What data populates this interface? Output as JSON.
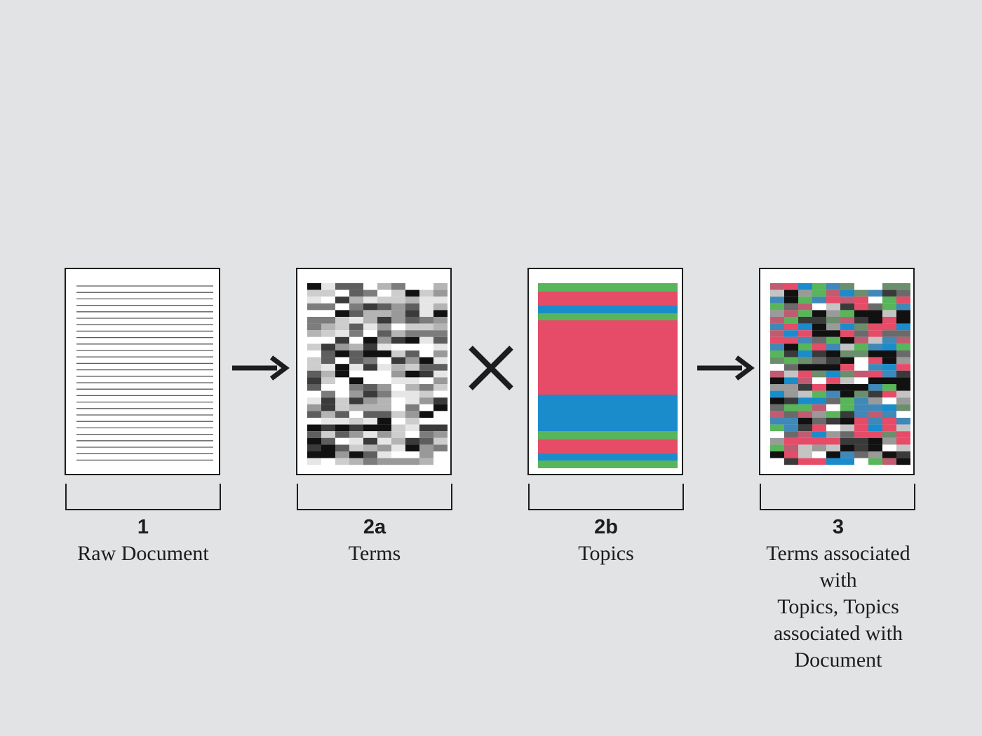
{
  "colors": {
    "background": "#e2e3e5",
    "ink": "#1d1d1d",
    "topic_green": "#58b55a",
    "topic_pink": "#e64b68",
    "topic_blue": "#1a8ccb"
  },
  "icons": {
    "arrow_1": "arrow-right-icon",
    "operator": "multiply-icon",
    "arrow_2": "arrow-right-icon"
  },
  "steps": [
    {
      "num": "1",
      "label": "Raw Document"
    },
    {
      "num": "2a",
      "label": "Terms"
    },
    {
      "num": "2b",
      "label": "Topics"
    },
    {
      "num": "3",
      "label": "Terms associated with\nTopics, Topics associated with Document"
    }
  ],
  "topic_bands": [
    "green",
    "pink",
    "blue",
    "green",
    "pink",
    "blue",
    "green",
    "pink",
    "blue",
    "green"
  ]
}
